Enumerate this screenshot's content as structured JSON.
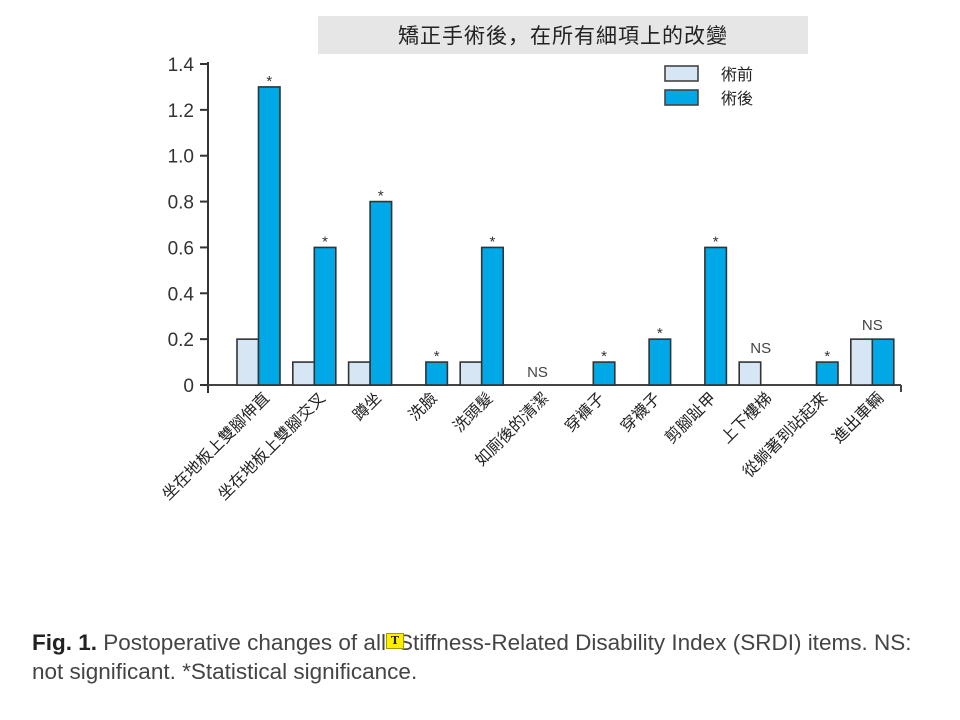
{
  "chart_data": {
    "type": "bar",
    "title": "矯正手術後，在所有細項上的改變",
    "xlabel": "",
    "ylabel": "",
    "ylim": [
      0,
      1.4
    ],
    "yticks": [
      0,
      0.2,
      0.4,
      0.6,
      0.8,
      1.0,
      1.2,
      1.4
    ],
    "ytick_labels": [
      "0",
      "0.2",
      "0.4",
      "0.6",
      "0.8",
      "1.0",
      "1.2",
      "1.4"
    ],
    "grid": false,
    "legend_position": "top-right",
    "categories": [
      "坐在地板上雙腳伸直",
      "坐在地板上雙腳交叉",
      "蹲坐",
      "洗臉",
      "洗頭髮",
      "如廁後的清潔",
      "穿褲子",
      "穿襪子",
      "剪腳趾甲",
      "上下樓梯",
      "從躺著到站起來",
      "進出車輛"
    ],
    "series": [
      {
        "name": "術前",
        "color": "#d6e6f5",
        "values": [
          0.2,
          0.1,
          0.1,
          0,
          0.1,
          0,
          0,
          0,
          0,
          0.1,
          0,
          0.2
        ]
      },
      {
        "name": "術後",
        "color": "#00a8e8",
        "values": [
          1.3,
          0.6,
          0.8,
          0.1,
          0.6,
          0,
          0.1,
          0.2,
          0.6,
          0,
          0.1,
          0.2
        ]
      }
    ],
    "annotations": [
      "*",
      "*",
      "*",
      "*",
      "*",
      "NS",
      "*",
      "*",
      "*",
      "NS",
      "*",
      "NS"
    ]
  },
  "caption": {
    "label": "Fig. 1.",
    "text_before_icon": " Postoperative changes of all",
    "icon": "T",
    "text_after_icon": "Stiffness-Related Disability Index (SRDI) items. NS: not significant. *Statistical significance."
  }
}
